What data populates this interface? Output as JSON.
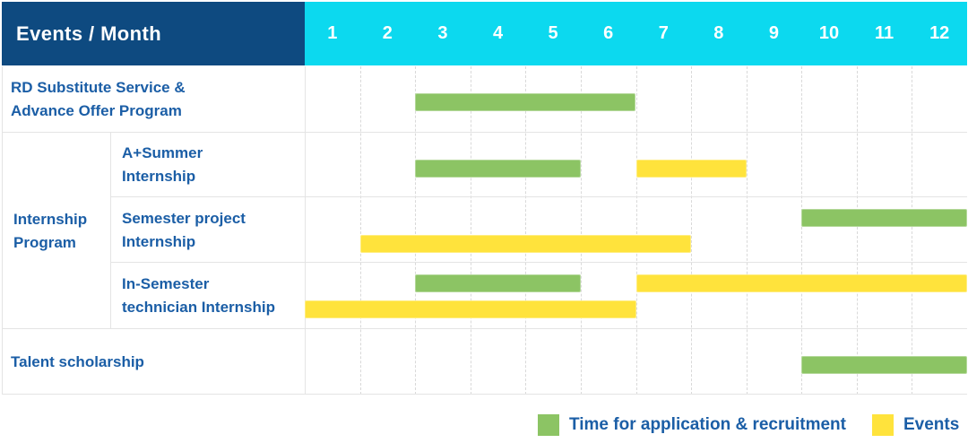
{
  "header": {
    "title": "Events / Month"
  },
  "colors": {
    "navy": "#0e4a80",
    "cyan": "#0cd9ef",
    "green": "#8cc464",
    "yellow": "#ffe33c",
    "text_blue": "#1b5ea6"
  },
  "chart_data": {
    "type": "gantt",
    "title": "Events / Month",
    "months": [
      "1",
      "2",
      "3",
      "4",
      "5",
      "6",
      "7",
      "8",
      "9",
      "10",
      "11",
      "12"
    ],
    "x_range": [
      1,
      12
    ],
    "grid": true,
    "legend_position": "bottom-right",
    "rows": [
      {
        "label": "RD Substitute Service & Advance Offer Program",
        "label_lines": [
          "RD Substitute Service &",
          "Advance Offer Program"
        ],
        "bars": [
          {
            "series": "application",
            "from": 3,
            "to": 6,
            "lane": "single"
          }
        ]
      },
      {
        "group": "Internship Program",
        "group_lines": [
          "Internship",
          "Program"
        ],
        "label": "A+Summer Internship",
        "label_lines": [
          "A+Summer",
          "Internship"
        ],
        "bars": [
          {
            "series": "application",
            "from": 3,
            "to": 5,
            "lane": "single"
          },
          {
            "series": "events",
            "from": 7,
            "to": 8,
            "lane": "single"
          }
        ]
      },
      {
        "group": "Internship Program",
        "label": "Semester project Internship",
        "label_lines": [
          "Semester project",
          "Internship"
        ],
        "bars": [
          {
            "series": "application",
            "from": 10,
            "to": 12,
            "lane": "upper"
          },
          {
            "series": "events",
            "from": 2,
            "to": 7,
            "lane": "lower"
          }
        ]
      },
      {
        "group": "Internship Program",
        "label": "In-Semester technician Internship",
        "label_lines": [
          "In-Semester",
          "technician Internship"
        ],
        "bars": [
          {
            "series": "application",
            "from": 3,
            "to": 5,
            "lane": "upper"
          },
          {
            "series": "events",
            "from": 7,
            "to": 12,
            "lane": "upper"
          },
          {
            "series": "events",
            "from": 1,
            "to": 6,
            "lane": "lower"
          }
        ]
      },
      {
        "label": "Talent scholarship",
        "label_lines": [
          "Talent scholarship"
        ],
        "bars": [
          {
            "series": "application",
            "from": 10,
            "to": 12,
            "lane": "single"
          }
        ]
      }
    ],
    "legend": [
      {
        "series": "application",
        "color_key": "green",
        "label": "Time for application & recruitment"
      },
      {
        "series": "events",
        "color_key": "yellow",
        "label": "Events"
      }
    ]
  }
}
